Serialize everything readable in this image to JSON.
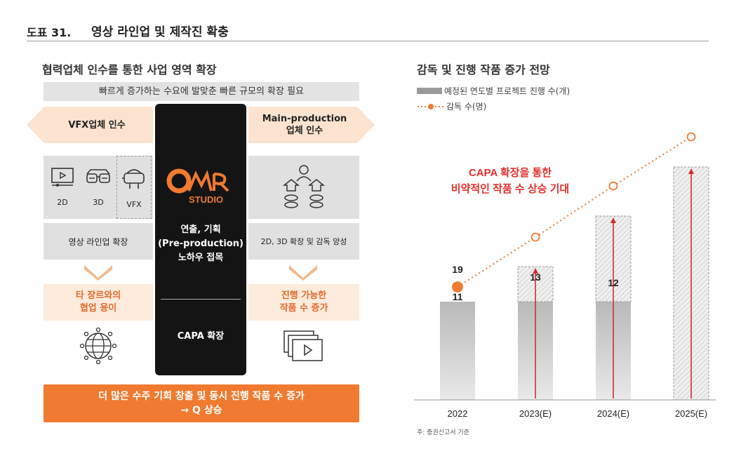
{
  "header": {
    "figure_label": "도표 31.",
    "title": "영상 라인업 및 제작진 확충"
  },
  "left": {
    "title": "협력업체 인수를 통한 사업 영역 확장",
    "subtitle": "빠르게 증가하는 수요에 발맞춘 빠른 규모의 확장 필요",
    "vfx_banner": "VFX업체 인수",
    "main_banner_line1": "Main-production",
    "main_banner_line2": "업체 인수",
    "icons": [
      {
        "icon": "monitor-play-icon",
        "label": "2D"
      },
      {
        "icon": "3d-glasses-icon",
        "label": "3D"
      },
      {
        "icon": "vr-headset-icon",
        "label": "VFX"
      }
    ],
    "right_icon": "people-network-icon",
    "left_desc": "영상 라인업 확장",
    "right_desc": "2D, 3D 확장 및 감독 양성",
    "left_result_line1": "타 장르와의",
    "left_result_line2": "협업 용이",
    "right_result_line1": "진행 가능한",
    "right_result_line2": "작품 수 증가",
    "center": {
      "logo_text": "STUDIO",
      "line1": "연출, 기획",
      "line2": "(Pre-production)",
      "line3": "노하우 접목",
      "capa": "CAPA 확장"
    },
    "bottom_line1": "더 많은 수주 기회 창출 및 동시 진행 작품 수 증가",
    "bottom_line2": "→ Q 상승",
    "accent": "#ef7a30",
    "peach": "#fdebdc"
  },
  "right": {
    "title": "감독 및 진행 작품 증가 전망",
    "legend_bar": "예정된 연도별 프로젝트 진행 수(개)",
    "legend_line": "감독 수(명)",
    "annotation_line1": "CAPA 확장을 통한",
    "annotation_line2": "비약적인 작품 수 상승 기대",
    "note": "주: 증권신고서 기준"
  },
  "chart_data": {
    "type": "bar",
    "categories": [
      "2022",
      "2023(E)",
      "2024(E)",
      "2025(E)"
    ],
    "series": [
      {
        "name": "예정된 연도별 프로젝트 진행 수(개)",
        "type": "bar",
        "base_values": [
          11,
          11,
          11,
          11
        ],
        "increase_values": [
          0,
          13,
          12,
          null
        ]
      },
      {
        "name": "감독 수(명)",
        "type": "line",
        "values": [
          19,
          null,
          null,
          null
        ]
      }
    ],
    "data_labels": {
      "bar_2022": "11",
      "line_2022": "19",
      "inc_2023": "13",
      "inc_2024": "12"
    },
    "grid": false,
    "legend": "top-left"
  }
}
